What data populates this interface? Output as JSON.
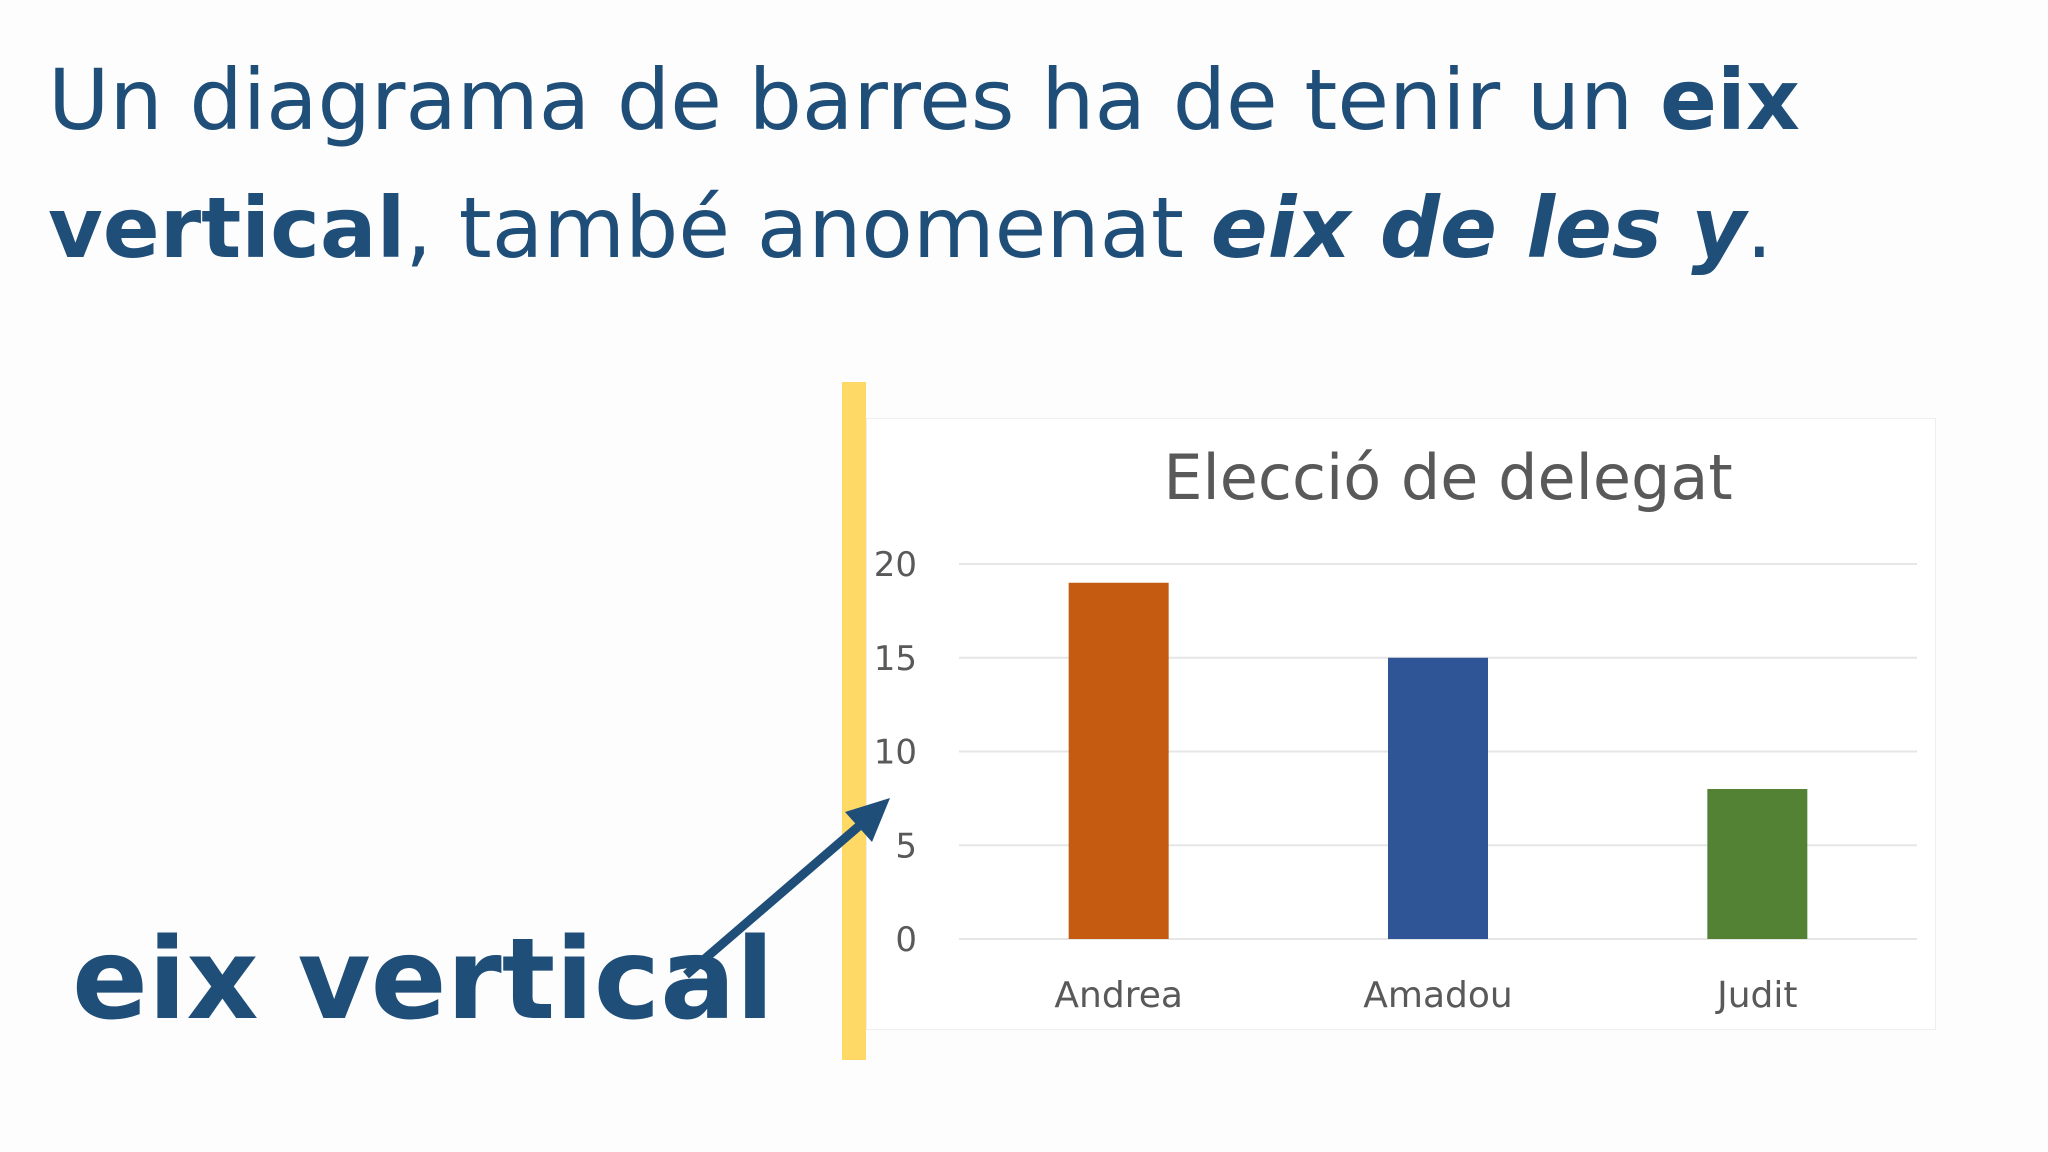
{
  "headline": {
    "part1": "Un diagrama de barres ha de tenir un ",
    "bold1": "eix vertical",
    "part2": ", també anomenat ",
    "bold_italic": "eix de les y",
    "part3": "."
  },
  "callout": {
    "label": "eix vertical"
  },
  "colors": {
    "text": "#1f4e79",
    "highlight": "#ffd966",
    "bars": [
      "#c55a11",
      "#2f5597",
      "#548235"
    ],
    "gridline": "#e6e6e6",
    "chart_text": "#595959"
  },
  "chart_data": {
    "type": "bar",
    "title": "Elecció de delegat",
    "categories": [
      "Andrea",
      "Amadou",
      "Judit"
    ],
    "values": [
      19,
      15,
      8
    ],
    "ylim": [
      0,
      20
    ],
    "yticks": [
      0,
      5,
      10,
      15,
      20
    ],
    "xlabel": "",
    "ylabel": "",
    "grid": true,
    "legend": false
  }
}
